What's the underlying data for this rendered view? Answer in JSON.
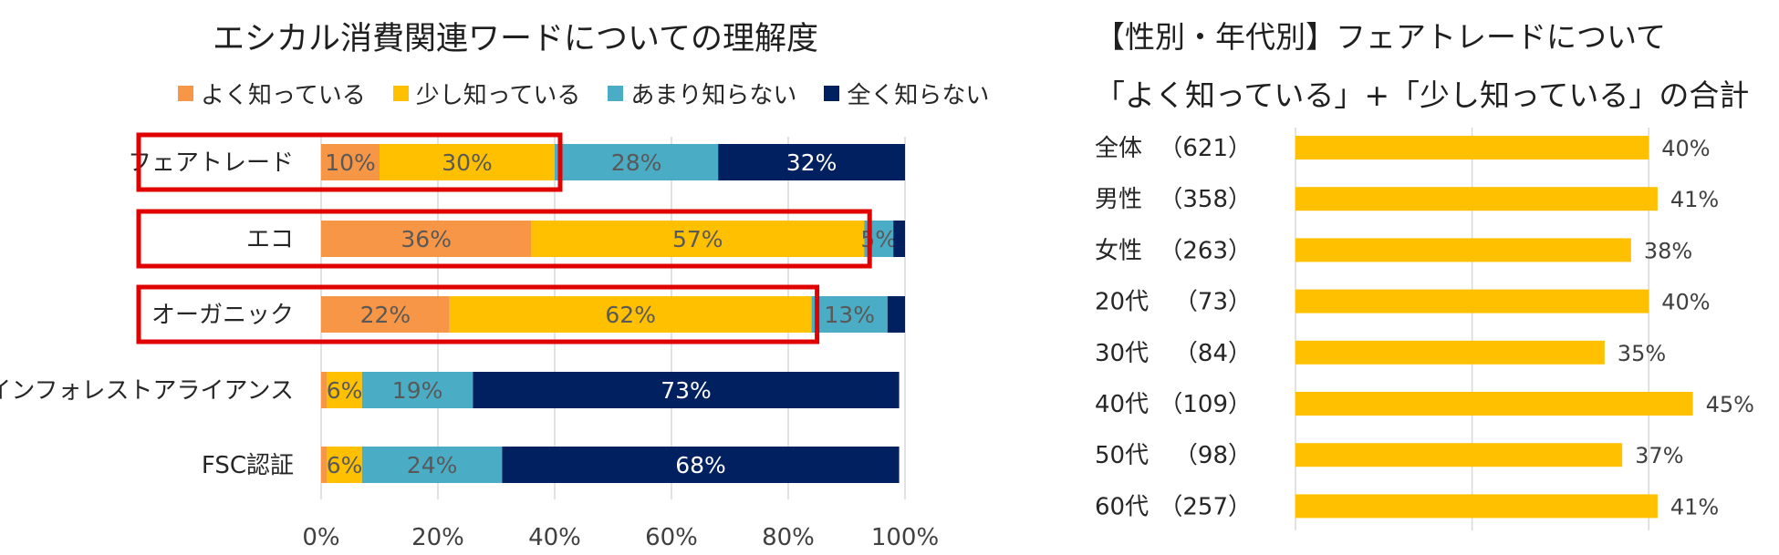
{
  "chart_data": [
    {
      "type": "bar",
      "orientation": "horizontal",
      "stacked": true,
      "title": "エシカル消費関連ワードについての理解度",
      "categories": [
        "フェアトレード",
        "エコ",
        "オーガニック",
        "レインフォレストアライアンス",
        "FSC認証"
      ],
      "series": [
        {
          "name": "よく知っている",
          "color": "#F79646",
          "values": [
            10,
            36,
            22,
            1,
            1
          ],
          "labels": [
            "10%",
            "36%",
            "22%",
            "",
            ""
          ]
        },
        {
          "name": "少し知っている",
          "color": "#FFC000",
          "values": [
            30,
            57,
            62,
            6,
            6
          ],
          "labels": [
            "30%",
            "57%",
            "62%",
            "6%",
            "6%"
          ]
        },
        {
          "name": "あまり知らない",
          "color": "#4BACC6",
          "values": [
            28,
            5,
            13,
            19,
            24
          ],
          "labels": [
            "28%",
            "5%",
            "13%",
            "19%",
            "24%"
          ]
        },
        {
          "name": "全く知らない",
          "color": "#002060",
          "values": [
            32,
            2,
            3,
            73,
            68
          ],
          "labels": [
            "32%",
            "",
            "",
            "73%",
            "68%"
          ]
        }
      ],
      "xticks": [
        "0%",
        "20%",
        "40%",
        "60%",
        "80%",
        "100%"
      ],
      "xlim": [
        0,
        100
      ],
      "highlighted_categories": [
        "フェアトレード",
        "エコ",
        "オーガニック"
      ],
      "legend": "top"
    },
    {
      "type": "bar",
      "orientation": "horizontal",
      "title_line1": "【性別・年代別】フェアトレードについて",
      "title_line2": "「よく知っている」+「少し知っている」の合計",
      "segments": [
        "全体",
        "男性",
        "女性",
        "20代",
        "30代",
        "40代",
        "50代",
        "60代"
      ],
      "counts": [
        "（621）",
        "（358）",
        "（263）",
        "（73）",
        "（84）",
        "（109）",
        "（98）",
        "（257）"
      ],
      "values": [
        40,
        41,
        38,
        40,
        35,
        45,
        37,
        41
      ],
      "labels": [
        "40%",
        "41%",
        "38%",
        "40%",
        "35%",
        "45%",
        "37%",
        "41%"
      ],
      "color": "#FFC000",
      "xlim": [
        0,
        50
      ]
    }
  ]
}
